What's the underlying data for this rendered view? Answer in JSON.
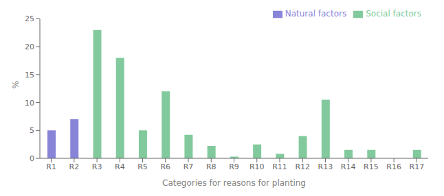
{
  "chart_data": {
    "type": "bar",
    "xlabel": "Categories for reasons for planting",
    "ylabel": "%",
    "categories": [
      "R1",
      "R2",
      "R3",
      "R4",
      "R5",
      "R6",
      "R7",
      "R8",
      "R9",
      "R10",
      "R11",
      "R12",
      "R13",
      "R14",
      "R15",
      "R16",
      "R17"
    ],
    "series": [
      {
        "name": "Natural factors",
        "color": "#8884d8",
        "values": [
          5.0,
          7.0,
          0,
          0,
          0,
          0,
          0,
          0,
          0,
          0,
          0,
          0,
          0,
          0,
          0,
          0,
          0
        ]
      },
      {
        "name": "Social factors",
        "color": "#82ca9d",
        "values": [
          0,
          0,
          23.0,
          18.0,
          5.0,
          12.0,
          4.2,
          2.2,
          0.3,
          2.5,
          0.8,
          4.0,
          10.5,
          1.5,
          1.5,
          0,
          1.5
        ]
      }
    ],
    "ylim": [
      0,
      25
    ],
    "yticks": [
      0,
      5,
      10,
      15,
      20,
      25
    ],
    "grid": false,
    "legend": "upper right"
  }
}
